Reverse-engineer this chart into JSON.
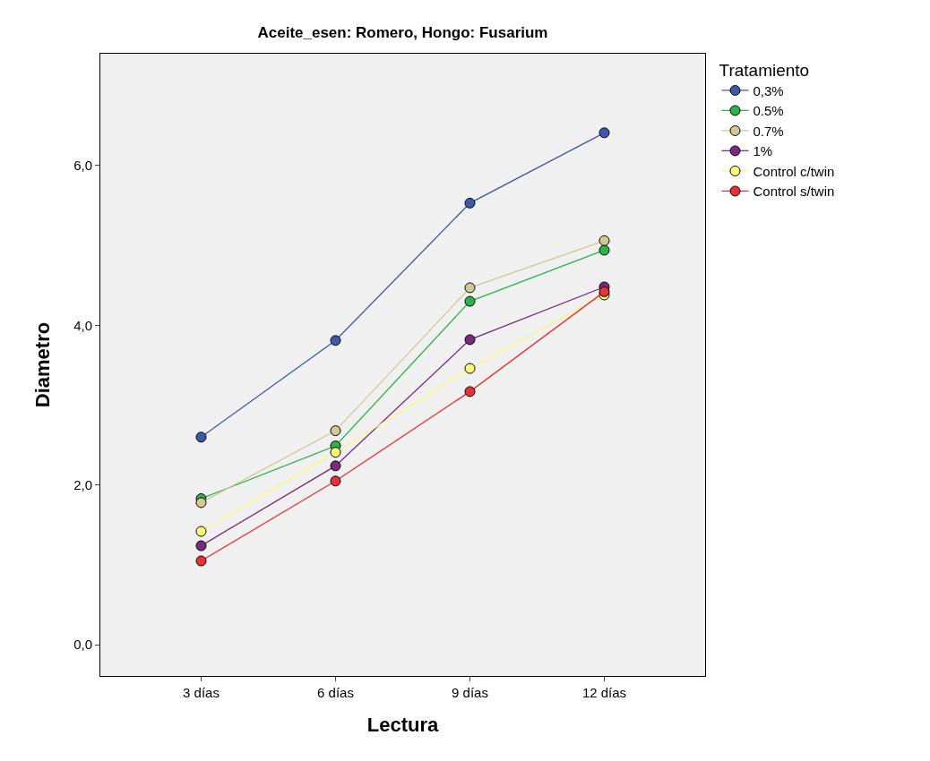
{
  "chart_data": {
    "type": "line",
    "title": "Aceite_esen: Romero, Hongo: Fusarium",
    "xlabel": "Lectura",
    "ylabel": "Diametro",
    "legend_title": "Tratamiento",
    "categories": [
      "3 días",
      "6 días",
      "9 días",
      "12 días"
    ],
    "series": [
      {
        "name": "0,3%",
        "color": "#3f58a8",
        "values": [
          2.6,
          3.81,
          5.53,
          6.41
        ]
      },
      {
        "name": "0.5%",
        "color": "#2db34a",
        "values": [
          1.83,
          2.49,
          4.3,
          4.94
        ]
      },
      {
        "name": "0.7%",
        "color": "#d0c895",
        "values": [
          1.78,
          2.68,
          4.47,
          5.06
        ]
      },
      {
        "name": "1%",
        "color": "#7a2a7a",
        "values": [
          1.24,
          2.24,
          3.82,
          4.48
        ]
      },
      {
        "name": "Control c/twin",
        "color": "#fbf87a",
        "values": [
          1.42,
          2.41,
          3.46,
          4.38
        ]
      },
      {
        "name": "Control s/twin",
        "color": "#e8323a",
        "values": [
          1.05,
          2.05,
          3.17,
          4.42
        ]
      }
    ],
    "ylim": [
      -0.39,
      7.4
    ],
    "yticks": [
      {
        "value": 0,
        "label": "0,0"
      },
      {
        "value": 2,
        "label": "2,0"
      },
      {
        "value": 4,
        "label": "4,0"
      },
      {
        "value": 6,
        "label": "6,0"
      }
    ],
    "grid": false,
    "legend": "top right",
    "marker": "circle",
    "line_style": "solid"
  }
}
